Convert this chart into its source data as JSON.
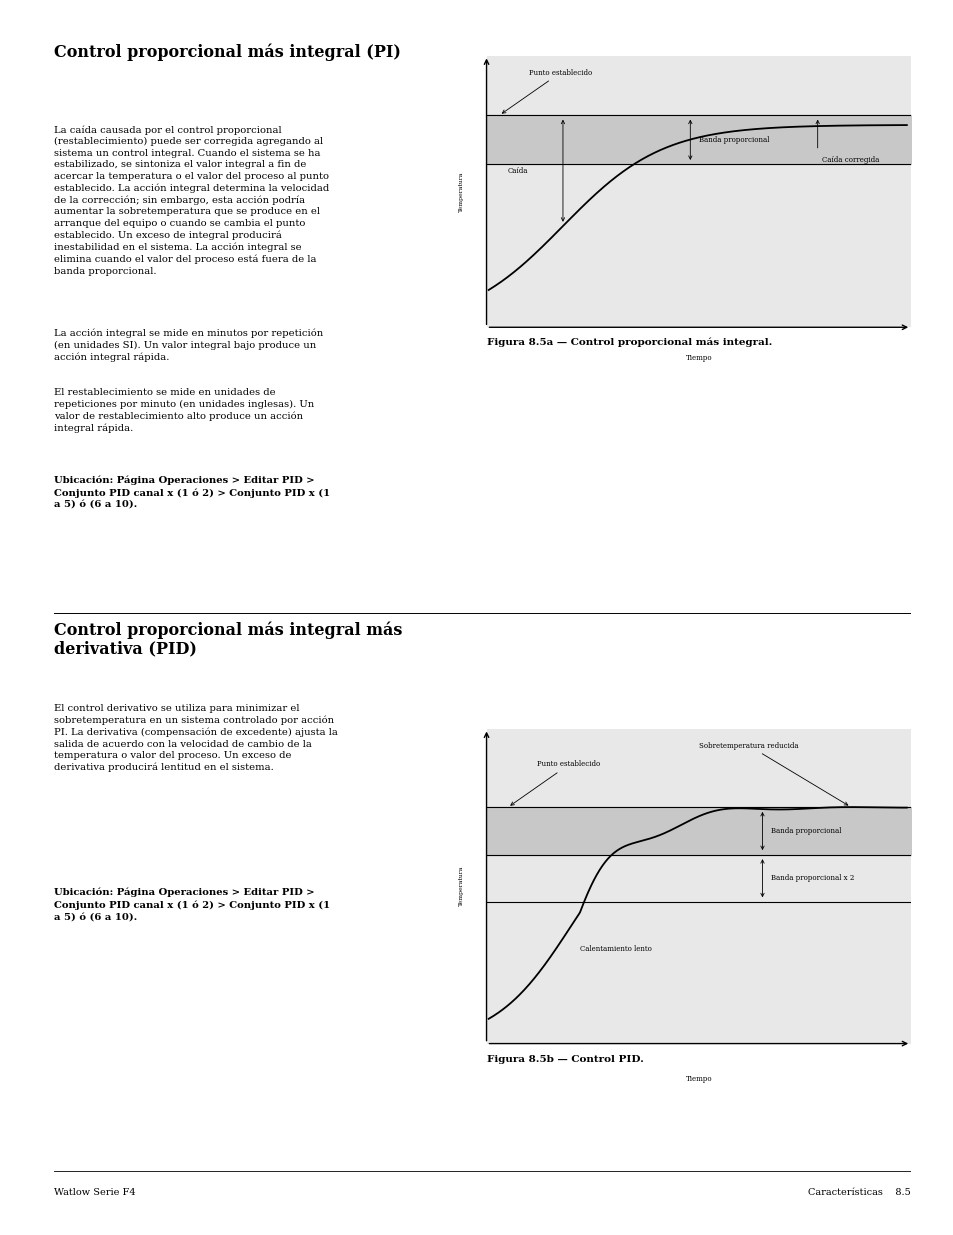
{
  "page_bg": "#ffffff",
  "top_section": {
    "title": "Control proporcional más integral (PI)",
    "para1": "La caída causada por el control proporcional\n(restablecimiento) puede ser corregida agregando al\nsistema un control integral. Cuando el sistema se ha\nestabilizado, se sintoniza el valor integral a fin de\nacercar la temperatura o el valor del proceso al punto\nestablecido. La acción integral determina la velocidad\nde la corrección; sin embargo, esta acción podría\naumentar la sobretemperatura que se produce en el\narranque del equipo o cuando se cambia el punto\nestablecido. Un exceso de integral producirá\ninestabilidad en el sistema. La acción integral se\nelimina cuando el valor del proceso está fuera de la\nbanda proporcional.",
    "para2": "La acción integral se mide en minutos por repetición\n(en unidades SI). Un valor integral bajo produce un\nacción integral rápida.",
    "para3": "El restablecimiento se mide en unidades de\nrepeticiones por minuto (en unidades inglesas). Un\nvalor de restablecimiento alto produce un acción\nintegral rápida.",
    "bold": "Ubicación: Página Operaciones > Editar PID >\nConjunto PID canal x (1 ó 2) > Conjunto PID x (1\na 5) ó (6 a 10).",
    "figure_caption": "Figura 8.5a — Control proporcional más integral."
  },
  "bottom_section": {
    "title": "Control proporcional más integral más\nderivativa (PID)",
    "para1": "El control derivativo se utiliza para minimizar el\nsobretemperatura en un sistema controlado por acción\nPI. La derivativa (compensación de excedente) ajusta la\nsalida de acuerdo con la velocidad de cambio de la\ntemperatura o valor del proceso. Un exceso de\nderivativa producirá lentitud en el sistema.",
    "bold": "Ubicación: Página Operaciones > Editar PID >\nConjunto PID canal x (1 ó 2) > Conjunto PID x (1\na 5) ó (6 a 10).",
    "figure_caption": "Figura 8.5b — Control PID."
  },
  "footer_left": "Watlow Serie F4",
  "footer_right": "Características    8.5",
  "chart_bg": "#e8e8e8",
  "chart_band_color": "#c8c8c8"
}
